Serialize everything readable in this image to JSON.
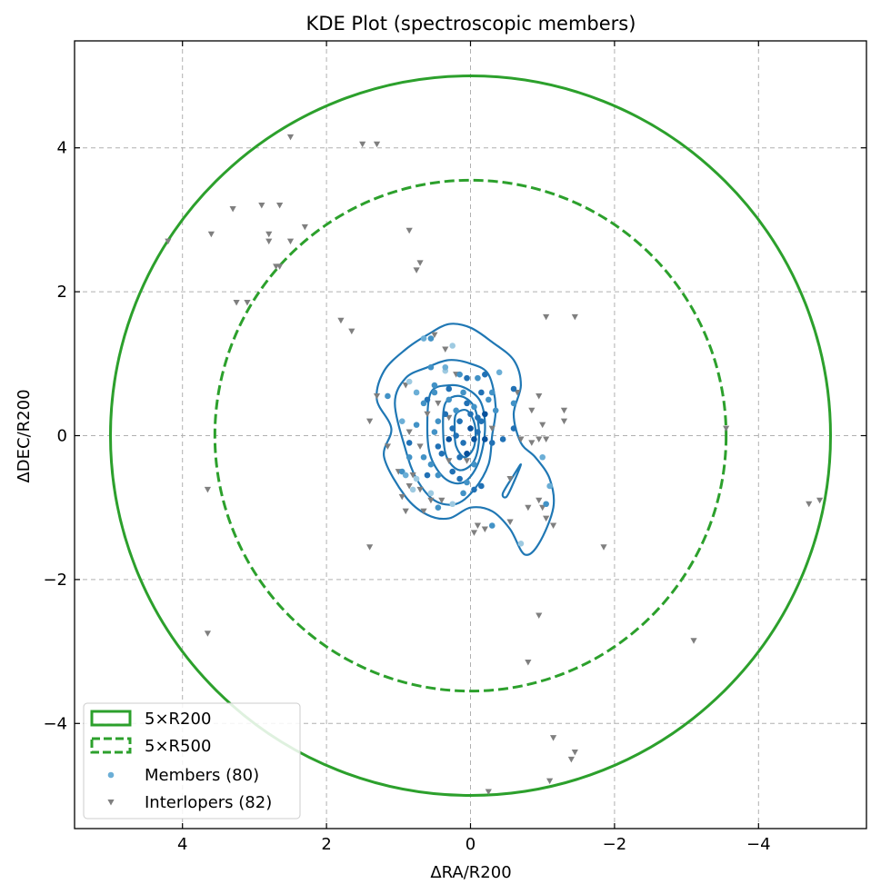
{
  "chart_data": {
    "type": "scatter",
    "title": "KDE Plot (spectroscopic members)",
    "xlabel": "ΔRA/R200",
    "ylabel": "ΔDEC/R200",
    "xlim": [
      5.5,
      -5.5
    ],
    "ylim": [
      -5.5,
      5.5
    ],
    "x_inverted": true,
    "grid": true,
    "legend_position": "lower-left",
    "x_ticks": [
      4,
      2,
      0,
      -2,
      -4
    ],
    "x_tick_labels": [
      "4",
      "2",
      "0",
      "−2",
      "−4"
    ],
    "y_ticks": [
      4,
      2,
      0,
      -2,
      -4
    ],
    "y_tick_labels": [
      "4",
      "2",
      "0",
      "−2",
      "−4"
    ],
    "colors": {
      "circle": "#2ca02c",
      "kde": "#1f77b4",
      "members": "#6baed6",
      "interlopers": "#7f7f7f",
      "grid": "#b0b0b0"
    },
    "circles": [
      {
        "name": "5×R200",
        "radius": 5.0,
        "style": "solid"
      },
      {
        "name": "5×R500",
        "radius": 3.55,
        "style": "dashed"
      }
    ],
    "legend": [
      {
        "label": "5×R200"
      },
      {
        "label": "5×R500"
      },
      {
        "label": "Members (80)"
      },
      {
        "label": "Interlopers (82)"
      }
    ],
    "kde_contours": [
      [
        [
          1.3,
          0.5
        ],
        [
          1.2,
          0.9
        ],
        [
          0.9,
          1.2
        ],
        [
          0.6,
          1.4
        ],
        [
          0.3,
          1.55
        ],
        [
          0,
          1.5
        ],
        [
          -0.3,
          1.3
        ],
        [
          -0.6,
          1.05
        ],
        [
          -0.7,
          0.7
        ],
        [
          -0.6,
          0.3
        ],
        [
          -0.7,
          -0.1
        ],
        [
          -0.9,
          -0.3
        ],
        [
          -1.1,
          -0.6
        ],
        [
          -1.15,
          -1.0
        ],
        [
          -0.95,
          -1.5
        ],
        [
          -0.75,
          -1.65
        ],
        [
          -0.55,
          -1.3
        ],
        [
          -0.3,
          -1.05
        ],
        [
          0,
          -1.0
        ],
        [
          0.3,
          -1.15
        ],
        [
          0.6,
          -1.1
        ],
        [
          0.9,
          -0.85
        ],
        [
          1.2,
          -0.3
        ],
        [
          1.1,
          0.1
        ],
        [
          1.3,
          0.5
        ]
      ],
      [
        [
          1.05,
          0.45
        ],
        [
          0.9,
          0.8
        ],
        [
          0.6,
          0.95
        ],
        [
          0.3,
          1.05
        ],
        [
          0,
          1.0
        ],
        [
          -0.25,
          0.85
        ],
        [
          -0.35,
          0.4
        ],
        [
          -0.3,
          0.0
        ],
        [
          -0.25,
          -0.4
        ],
        [
          -0.05,
          -0.75
        ],
        [
          0.2,
          -0.95
        ],
        [
          0.5,
          -0.9
        ],
        [
          0.75,
          -0.6
        ],
        [
          0.9,
          -0.2
        ],
        [
          1.05,
          0.45
        ]
      ],
      [
        [
          0.55,
          0.6
        ],
        [
          0.3,
          0.7
        ],
        [
          0.05,
          0.65
        ],
        [
          -0.15,
          0.45
        ],
        [
          -0.2,
          0.05
        ],
        [
          -0.1,
          -0.4
        ],
        [
          0.1,
          -0.65
        ],
        [
          0.35,
          -0.6
        ],
        [
          0.55,
          -0.3
        ],
        [
          0.6,
          0.1
        ],
        [
          0.55,
          0.6
        ]
      ],
      [
        [
          0.35,
          0.45
        ],
        [
          0.15,
          0.55
        ],
        [
          -0.05,
          0.4
        ],
        [
          -0.12,
          0.0
        ],
        [
          -0.05,
          -0.35
        ],
        [
          0.15,
          -0.48
        ],
        [
          0.33,
          -0.3
        ],
        [
          0.38,
          0.05
        ],
        [
          0.35,
          0.45
        ]
      ],
      [
        [
          0.2,
          0.3
        ],
        [
          0.05,
          0.35
        ],
        [
          -0.06,
          0.15
        ],
        [
          -0.05,
          -0.15
        ],
        [
          0.08,
          -0.3
        ],
        [
          0.2,
          -0.15
        ],
        [
          0.22,
          0.1
        ],
        [
          0.2,
          0.3
        ]
      ],
      [
        [
          -0.6,
          -0.55
        ],
        [
          -0.7,
          -0.4
        ],
        [
          -0.6,
          -0.65
        ],
        [
          -0.5,
          -0.85
        ],
        [
          -0.45,
          -0.8
        ],
        [
          -0.6,
          -0.55
        ]
      ]
    ],
    "members": [
      [
        0.25,
        1.25
      ],
      [
        0.65,
        1.35
      ],
      [
        0.55,
        0.95
      ],
      [
        0.35,
        0.9
      ],
      [
        0.15,
        0.85
      ],
      [
        -0.2,
        0.85
      ],
      [
        -0.1,
        0.8
      ],
      [
        -0.4,
        0.88
      ],
      [
        1.15,
        0.55
      ],
      [
        0.85,
        0.75
      ],
      [
        0.75,
        0.6
      ],
      [
        0.6,
        0.5
      ],
      [
        0.5,
        0.7
      ],
      [
        0.3,
        0.65
      ],
      [
        0.1,
        0.6
      ],
      [
        -0.15,
        0.6
      ],
      [
        -0.3,
        0.6
      ],
      [
        0.05,
        0.45
      ],
      [
        -0.05,
        0.4
      ],
      [
        -0.1,
        0.25
      ],
      [
        0.2,
        0.35
      ],
      [
        0.35,
        0.3
      ],
      [
        0.45,
        0.2
      ],
      [
        0.15,
        0.2
      ],
      [
        0.0,
        0.1
      ],
      [
        0.25,
        0.1
      ],
      [
        -0.05,
        -0.05
      ],
      [
        0.1,
        -0.1
      ],
      [
        0.3,
        -0.05
      ],
      [
        0.45,
        -0.15
      ],
      [
        -0.2,
        -0.05
      ],
      [
        0.15,
        -0.3
      ],
      [
        -0.05,
        -0.4
      ],
      [
        -0.3,
        -0.1
      ],
      [
        0.55,
        -0.4
      ],
      [
        0.85,
        -0.3
      ],
      [
        0.75,
        -0.6
      ],
      [
        0.6,
        -0.55
      ],
      [
        0.45,
        -0.55
      ],
      [
        0.25,
        -0.5
      ],
      [
        0.05,
        -0.65
      ],
      [
        -0.05,
        -0.75
      ],
      [
        0.1,
        -0.8
      ],
      [
        -0.15,
        -0.7
      ],
      [
        0.45,
        -1.0
      ],
      [
        0.25,
        -0.95
      ],
      [
        0.65,
        -0.3
      ],
      [
        0.95,
        -0.5
      ],
      [
        0.75,
        0.15
      ],
      [
        0.85,
        -0.1
      ],
      [
        -0.6,
        0.45
      ],
      [
        -0.6,
        0.65
      ],
      [
        -0.25,
        0.5
      ],
      [
        -0.15,
        0.2
      ],
      [
        0.5,
        0.05
      ],
      [
        0.95,
        0.2
      ],
      [
        0.55,
        1.35
      ],
      [
        -0.45,
        -0.05
      ],
      [
        -1.0,
        -0.3
      ],
      [
        -1.05,
        -0.95
      ],
      [
        -0.7,
        -1.5
      ],
      [
        -1.1,
        -0.7
      ],
      [
        -0.3,
        -1.25
      ],
      [
        0.8,
        -0.75
      ],
      [
        0.35,
        0.95
      ],
      [
        0.2,
        0.0
      ],
      [
        0.05,
        -0.25
      ],
      [
        -0.1,
        0.05
      ],
      [
        0.65,
        0.45
      ],
      [
        0.4,
        -0.25
      ],
      [
        0.3,
        0.5
      ],
      [
        0.0,
        0.3
      ],
      [
        -0.2,
        0.3
      ],
      [
        0.15,
        -0.6
      ],
      [
        -0.35,
        0.35
      ],
      [
        0.55,
        -0.8
      ],
      [
        0.9,
        -0.55
      ],
      [
        -0.6,
        0.1
      ],
      [
        0.5,
        0.6
      ],
      [
        0.05,
        0.8
      ]
    ],
    "interlopers": [
      [
        2.5,
        4.15
      ],
      [
        1.5,
        4.05
      ],
      [
        1.3,
        4.05
      ],
      [
        4.2,
        2.7
      ],
      [
        3.3,
        3.15
      ],
      [
        2.9,
        3.2
      ],
      [
        2.65,
        3.2
      ],
      [
        3.6,
        2.8
      ],
      [
        2.8,
        2.8
      ],
      [
        2.8,
        2.7
      ],
      [
        2.5,
        2.7
      ],
      [
        2.3,
        2.9
      ],
      [
        2.7,
        2.35
      ],
      [
        2.65,
        2.35
      ],
      [
        0.85,
        2.85
      ],
      [
        0.7,
        2.4
      ],
      [
        0.75,
        2.3
      ],
      [
        3.25,
        1.85
      ],
      [
        3.1,
        1.85
      ],
      [
        1.8,
        1.6
      ],
      [
        1.65,
        1.45
      ],
      [
        0.5,
        1.4
      ],
      [
        0.35,
        1.2
      ],
      [
        -1.05,
        1.65
      ],
      [
        -1.45,
        1.65
      ],
      [
        -0.95,
        0.55
      ],
      [
        -0.85,
        0.35
      ],
      [
        -1.3,
        0.35
      ],
      [
        -1.3,
        0.2
      ],
      [
        -1.05,
        -0.05
      ],
      [
        -0.95,
        -0.05
      ],
      [
        -0.85,
        -0.1
      ],
      [
        -3.55,
        0.1
      ],
      [
        1.3,
        0.55
      ],
      [
        1.4,
        0.2
      ],
      [
        0.85,
        0.05
      ],
      [
        1.15,
        -0.15
      ],
      [
        0.7,
        -0.15
      ],
      [
        0.85,
        -0.7
      ],
      [
        0.55,
        -0.9
      ],
      [
        -0.05,
        -1.35
      ],
      [
        -1.15,
        -1.25
      ],
      [
        -1.05,
        -1.15
      ],
      [
        -0.55,
        -0.6
      ],
      [
        -4.7,
        -0.95
      ],
      [
        -4.85,
        -0.9
      ],
      [
        3.65,
        -0.75
      ],
      [
        1.4,
        -1.55
      ],
      [
        -1.85,
        -1.55
      ],
      [
        -0.95,
        -0.9
      ],
      [
        -1.0,
        -1.0
      ],
      [
        -0.8,
        -1.0
      ],
      [
        0.8,
        -0.55
      ],
      [
        0.95,
        -0.85
      ],
      [
        0.7,
        -0.75
      ],
      [
        0.4,
        -0.9
      ],
      [
        3.65,
        -2.75
      ],
      [
        -0.95,
        -2.5
      ],
      [
        -3.1,
        -2.85
      ],
      [
        -0.8,
        -3.15
      ],
      [
        -1.15,
        -4.2
      ],
      [
        -1.45,
        -4.4
      ],
      [
        -1.4,
        -4.5
      ],
      [
        -1.1,
        -4.8
      ],
      [
        -0.25,
        -4.95
      ],
      [
        -0.55,
        -1.2
      ],
      [
        -0.2,
        -1.3
      ],
      [
        0.3,
        0.25
      ],
      [
        0.05,
        -0.35
      ],
      [
        -0.3,
        0.1
      ],
      [
        0.2,
        0.85
      ],
      [
        0.9,
        0.7
      ],
      [
        0.45,
        0.45
      ],
      [
        -1.0,
        0.15
      ],
      [
        0.65,
        -1.05
      ],
      [
        0.9,
        -1.05
      ],
      [
        -0.1,
        -1.25
      ],
      [
        0.6,
        0.3
      ],
      [
        -0.65,
        0.6
      ],
      [
        1.0,
        -0.5
      ],
      [
        0.3,
        -0.35
      ],
      [
        -0.7,
        -0.05
      ]
    ]
  }
}
